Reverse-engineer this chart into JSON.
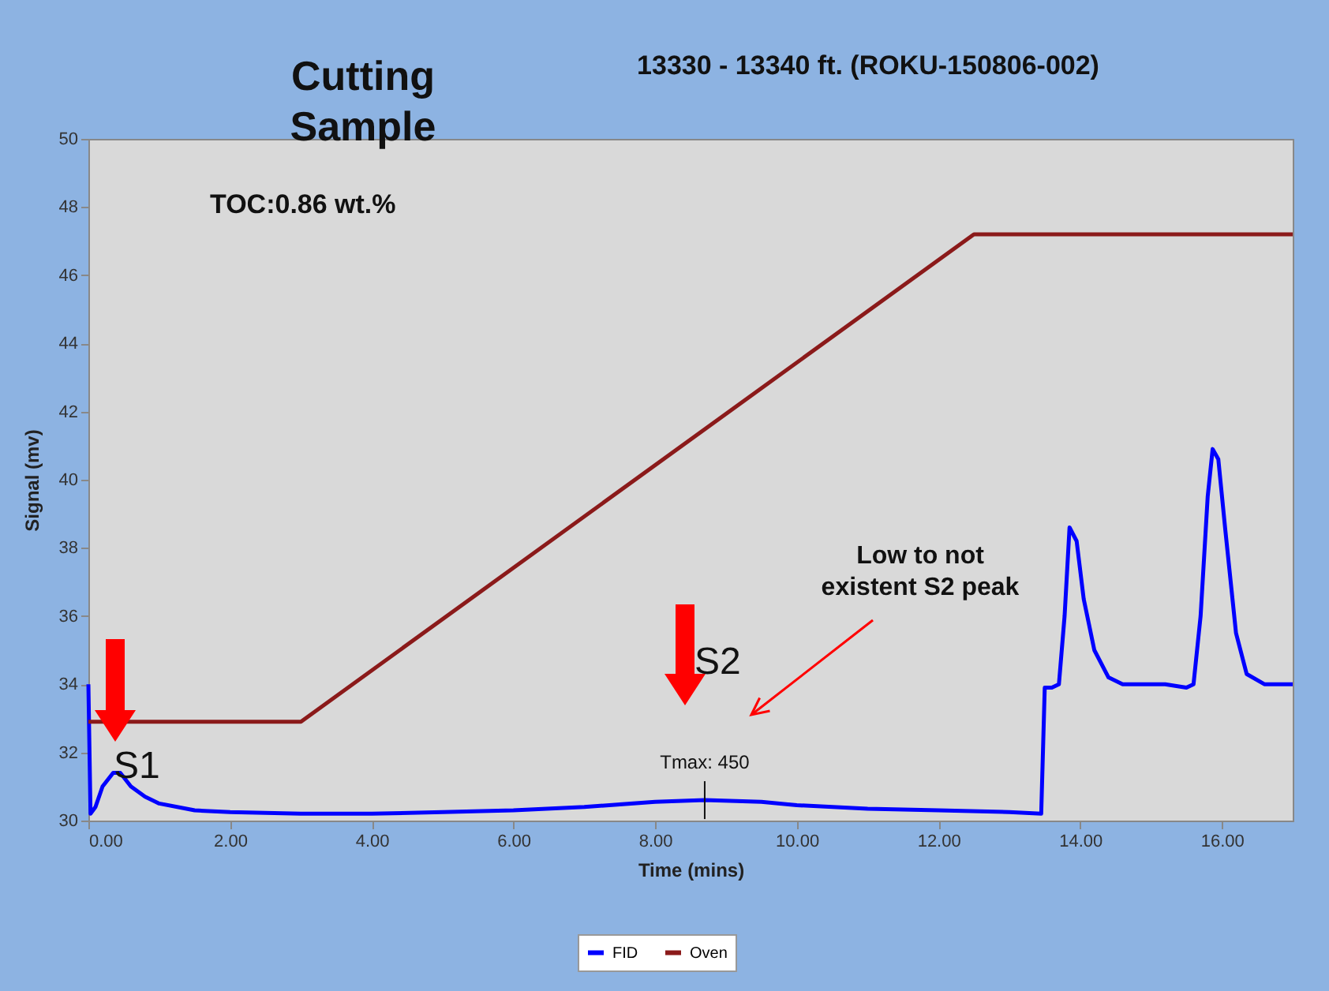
{
  "chart_data": {
    "type": "line",
    "title": "Cutting Sample",
    "subtitle": "13330 - 13340 ft. (ROKU-150806-002)",
    "xlabel": "Time (mins)",
    "ylabel": "Signal (mv)",
    "xlim": [
      0,
      17
    ],
    "ylim": [
      30,
      50
    ],
    "xticks": [
      {
        "value": 0,
        "label": "0.00"
      },
      {
        "value": 2,
        "label": "2.00"
      },
      {
        "value": 4,
        "label": "4.00"
      },
      {
        "value": 6,
        "label": "6.00"
      },
      {
        "value": 8,
        "label": "8.00"
      },
      {
        "value": 10,
        "label": "10.00"
      },
      {
        "value": 12,
        "label": "12.00"
      },
      {
        "value": 14,
        "label": "14.00"
      },
      {
        "value": 16,
        "label": "16.00"
      }
    ],
    "yticks": [
      30,
      32,
      34,
      36,
      38,
      40,
      42,
      44,
      46,
      48,
      50
    ],
    "legend": "bottom",
    "grid": false,
    "series": [
      {
        "name": "FID",
        "color": "#0000ff",
        "x": [
          0,
          0.03,
          0.1,
          0.2,
          0.35,
          0.45,
          0.6,
          0.8,
          1.0,
          1.5,
          2.0,
          3.0,
          4.0,
          5.0,
          6.0,
          7.0,
          8.0,
          8.7,
          9.5,
          10.0,
          11.0,
          12.0,
          13.0,
          13.45,
          13.5,
          13.6,
          13.7,
          13.78,
          13.85,
          13.95,
          14.05,
          14.2,
          14.4,
          14.6,
          15.0,
          15.2,
          15.5,
          15.6,
          15.7,
          15.8,
          15.87,
          15.95,
          16.05,
          16.2,
          16.35,
          16.6,
          17.0
        ],
        "values": [
          34.0,
          30.2,
          30.4,
          31.0,
          31.4,
          31.4,
          31.0,
          30.7,
          30.5,
          30.3,
          30.25,
          30.2,
          30.2,
          30.25,
          30.3,
          30.4,
          30.55,
          30.6,
          30.55,
          30.45,
          30.35,
          30.3,
          30.25,
          30.2,
          33.9,
          33.9,
          34.0,
          36.0,
          38.6,
          38.2,
          36.5,
          35.0,
          34.2,
          34.0,
          34.0,
          34.0,
          33.9,
          34.0,
          36.0,
          39.5,
          40.9,
          40.6,
          38.5,
          35.5,
          34.3,
          34.0,
          34.0
        ]
      },
      {
        "name": "Oven",
        "color": "#8b1a1a",
        "x": [
          0,
          3.0,
          12.5,
          17.0
        ],
        "values": [
          32.9,
          32.9,
          47.2,
          47.2
        ]
      }
    ],
    "annotations": [
      "TOC:0.86 wt.%",
      "S1",
      "S2",
      {
        "text": "Tmax: 450",
        "x": 8.7,
        "y": 30.6
      },
      "Low to not existent S2 peak"
    ]
  }
}
